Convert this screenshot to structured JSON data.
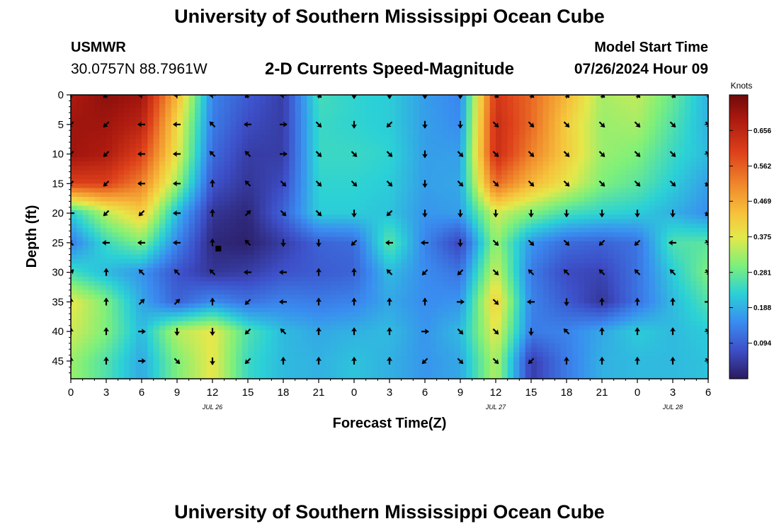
{
  "header": {
    "title": "University of Southern Mississippi Ocean Cube",
    "station_name": "USMWR",
    "station_coords": "30.0757N  88.7961W",
    "subtitle": "2-D Currents Speed-Magnitude",
    "model_label": "Model Start Time",
    "model_time": "07/26/2024 Hour 09"
  },
  "footer": {
    "title": "University of Southern Mississippi Ocean Cube"
  },
  "chart_data": {
    "type": "heatmap",
    "title": "2-D Currents Speed-Magnitude",
    "xlabel": "Forecast Time(Z)",
    "ylabel": "Depth (ft)",
    "x_ticks": [
      "0",
      "3",
      "6",
      "9",
      "12",
      "15",
      "18",
      "21",
      "0",
      "3",
      "6",
      "9",
      "12",
      "15",
      "18",
      "21",
      "0",
      "3",
      "6"
    ],
    "x_range_hours": [
      0,
      54
    ],
    "date_labels": [
      {
        "label": "JUL 26",
        "hour": 12
      },
      {
        "label": "JUL 27",
        "hour": 36
      },
      {
        "label": "JUL 28",
        "hour": 51
      }
    ],
    "y_ticks": [
      0,
      5,
      10,
      15,
      20,
      25,
      30,
      35,
      40,
      45
    ],
    "ylim": [
      0,
      48
    ],
    "colorbar": {
      "label": "Knots",
      "range": [
        0,
        0.75
      ],
      "ticks": [
        "0.656",
        "0.562",
        "0.469",
        "0.375",
        "0.281",
        "0.188",
        "0.094"
      ],
      "tick_values": [
        0.656,
        0.562,
        0.469,
        0.375,
        0.281,
        0.188,
        0.094
      ]
    },
    "arrow_x_hours": [
      0,
      3,
      6,
      9,
      12,
      15,
      18,
      21,
      24,
      27,
      30,
      33,
      36,
      39,
      42,
      45,
      48,
      51,
      54
    ],
    "arrow_depths": [
      0,
      5,
      10,
      15,
      20,
      25,
      30,
      35,
      40,
      45
    ],
    "speed_knots": [
      [
        0.68,
        0.72,
        0.7,
        0.45,
        0.14,
        0.09,
        0.05,
        0.25,
        0.23,
        0.22,
        0.17,
        0.14,
        0.62,
        0.55,
        0.45,
        0.33,
        0.35,
        0.28,
        0.19
      ],
      [
        0.7,
        0.7,
        0.66,
        0.4,
        0.13,
        0.07,
        0.05,
        0.24,
        0.23,
        0.22,
        0.17,
        0.15,
        0.64,
        0.55,
        0.42,
        0.32,
        0.33,
        0.26,
        0.19
      ],
      [
        0.7,
        0.68,
        0.6,
        0.38,
        0.11,
        0.05,
        0.05,
        0.24,
        0.24,
        0.23,
        0.17,
        0.17,
        0.64,
        0.52,
        0.42,
        0.32,
        0.3,
        0.24,
        0.2
      ],
      [
        0.6,
        0.6,
        0.52,
        0.32,
        0.08,
        0.04,
        0.07,
        0.23,
        0.23,
        0.22,
        0.17,
        0.18,
        0.55,
        0.45,
        0.38,
        0.3,
        0.27,
        0.22,
        0.17
      ],
      [
        0.22,
        0.34,
        0.42,
        0.2,
        0.04,
        0.02,
        0.1,
        0.22,
        0.22,
        0.21,
        0.16,
        0.17,
        0.36,
        0.3,
        0.25,
        0.23,
        0.22,
        0.19,
        0.15
      ],
      [
        0.13,
        0.24,
        0.3,
        0.14,
        0.02,
        0.01,
        0.05,
        0.1,
        0.11,
        0.27,
        0.14,
        0.06,
        0.32,
        0.16,
        0.11,
        0.1,
        0.12,
        0.26,
        0.27
      ],
      [
        0.25,
        0.2,
        0.16,
        0.08,
        0.04,
        0.05,
        0.08,
        0.09,
        0.1,
        0.2,
        0.15,
        0.12,
        0.36,
        0.13,
        0.07,
        0.06,
        0.12,
        0.22,
        0.3
      ],
      [
        0.38,
        0.3,
        0.18,
        0.1,
        0.15,
        0.12,
        0.14,
        0.13,
        0.14,
        0.18,
        0.15,
        0.16,
        0.42,
        0.14,
        0.09,
        0.04,
        0.12,
        0.2,
        0.26
      ],
      [
        0.36,
        0.3,
        0.2,
        0.34,
        0.38,
        0.26,
        0.2,
        0.18,
        0.19,
        0.2,
        0.16,
        0.2,
        0.38,
        0.13,
        0.14,
        0.18,
        0.22,
        0.2,
        0.22
      ],
      [
        0.32,
        0.26,
        0.18,
        0.3,
        0.38,
        0.24,
        0.2,
        0.19,
        0.21,
        0.19,
        0.16,
        0.18,
        0.34,
        0.05,
        0.13,
        0.19,
        0.2,
        0.2,
        0.21
      ]
    ],
    "direction_deg": [
      [
        225,
        225,
        270,
        270,
        270,
        225,
        270,
        135,
        180,
        180,
        180,
        180,
        135,
        135,
        135,
        135,
        135,
        135,
        135
      ],
      [
        225,
        225,
        270,
        270,
        315,
        270,
        90,
        135,
        180,
        225,
        180,
        180,
        135,
        135,
        135,
        135,
        135,
        135,
        135
      ],
      [
        225,
        225,
        270,
        270,
        315,
        315,
        90,
        135,
        135,
        135,
        180,
        135,
        135,
        135,
        135,
        135,
        135,
        135,
        135
      ],
      [
        225,
        225,
        270,
        270,
        0,
        315,
        135,
        135,
        135,
        135,
        180,
        135,
        135,
        135,
        135,
        135,
        135,
        135,
        225
      ],
      [
        270,
        225,
        225,
        270,
        0,
        45,
        135,
        135,
        180,
        225,
        180,
        180,
        180,
        180,
        180,
        180,
        180,
        180,
        225
      ],
      [
        315,
        270,
        270,
        270,
        0,
        315,
        180,
        180,
        225,
        270,
        270,
        180,
        135,
        135,
        135,
        225,
        225,
        270,
        135
      ],
      [
        45,
        0,
        315,
        315,
        315,
        270,
        270,
        0,
        0,
        315,
        225,
        225,
        135,
        315,
        315,
        315,
        315,
        315,
        135
      ],
      [
        0,
        0,
        45,
        45,
        0,
        225,
        270,
        0,
        0,
        0,
        0,
        90,
        135,
        270,
        180,
        0,
        0,
        0,
        90
      ],
      [
        0,
        0,
        90,
        180,
        180,
        225,
        315,
        0,
        0,
        0,
        90,
        135,
        135,
        180,
        315,
        0,
        0,
        0,
        135
      ],
      [
        0,
        0,
        90,
        135,
        180,
        225,
        0,
        0,
        0,
        0,
        225,
        135,
        135,
        225,
        0,
        0,
        0,
        0,
        135
      ]
    ],
    "marker": {
      "hour": 12.5,
      "depth": 26
    }
  }
}
